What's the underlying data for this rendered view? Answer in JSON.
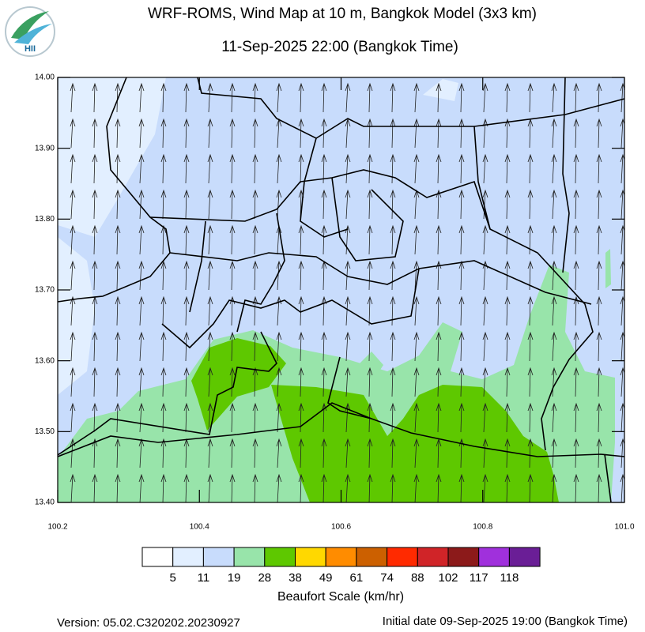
{
  "header": {
    "title": "WRF-ROMS, Wind Map at 10 m, Bangkok Model (3x3 km)",
    "subtitle": "11-Sep-2025 22:00 (Bangkok Time)",
    "logo_text": "HII"
  },
  "map": {
    "xlim": [
      100.2,
      101.0
    ],
    "ylim": [
      13.4,
      14.0
    ],
    "xticks": [
      {
        "value": 100.2,
        "label": "100.2"
      },
      {
        "value": 100.4,
        "label": "100.4"
      },
      {
        "value": 100.6,
        "label": "100.6"
      },
      {
        "value": 100.8,
        "label": "100.8"
      },
      {
        "value": 101.0,
        "label": "101.0"
      }
    ],
    "yticks": [
      {
        "value": 13.4,
        "label": "13.40"
      },
      {
        "value": 13.5,
        "label": "13.50"
      },
      {
        "value": 13.6,
        "label": "13.60"
      },
      {
        "value": 13.7,
        "label": "13.70"
      },
      {
        "value": 13.8,
        "label": "13.80"
      },
      {
        "value": 13.9,
        "label": "13.90"
      },
      {
        "value": 14.0,
        "label": "14.00"
      }
    ]
  },
  "colorbar": {
    "title": "Beaufort Scale (km/hr)",
    "levels": [
      5,
      11,
      19,
      28,
      38,
      49,
      61,
      74,
      88,
      102,
      117,
      118
    ],
    "colors": [
      "#ffffff",
      "#e2efff",
      "#c8dcfc",
      "#98e4aa",
      "#5ec800",
      "#ffd800",
      "#ff8c00",
      "#cc6000",
      "#ff2a00",
      "#d02428",
      "#8c1a1a",
      "#a030dc",
      "#6a1e96"
    ]
  },
  "footer": {
    "version": "Version: 05.02.C320202.20230927",
    "initial_date": "Initial date 09-Sep-2025 19:00 (Bangkok Time)"
  }
}
